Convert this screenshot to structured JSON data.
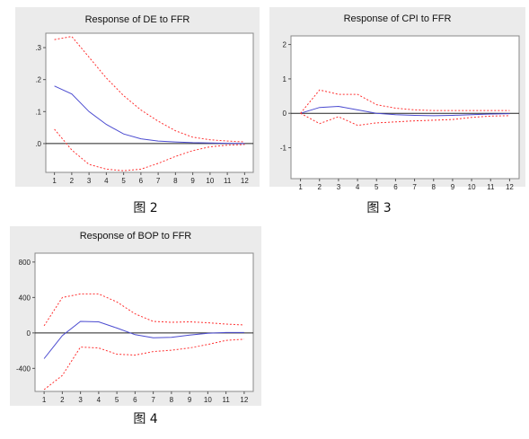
{
  "captions": [
    "图 2",
    "图 3",
    "图 4"
  ],
  "chart_data": [
    {
      "type": "line",
      "title": "Response of DE to FFR",
      "x": [
        1,
        2,
        3,
        4,
        5,
        6,
        7,
        8,
        9,
        10,
        11,
        12
      ],
      "yticks": [
        ".0",
        ".1",
        ".2",
        ".3"
      ],
      "ytick_values": [
        0,
        0.1,
        0.2,
        0.3
      ],
      "ylim": [
        -0.09,
        0.345
      ],
      "series": [
        {
          "role": "response",
          "color": "#4b4bd0",
          "values": [
            0.18,
            0.155,
            0.1,
            0.06,
            0.03,
            0.015,
            0.008,
            0.005,
            0.003,
            0.002,
            0.001,
            0.0
          ]
        },
        {
          "role": "upper-band",
          "color": "#ff3030",
          "values": [
            0.325,
            0.335,
            0.27,
            0.205,
            0.15,
            0.105,
            0.07,
            0.04,
            0.02,
            0.012,
            0.008,
            0.005
          ]
        },
        {
          "role": "lower-band",
          "color": "#ff3030",
          "values": [
            0.045,
            -0.02,
            -0.065,
            -0.08,
            -0.085,
            -0.08,
            -0.062,
            -0.04,
            -0.022,
            -0.01,
            -0.005,
            -0.003
          ]
        }
      ]
    },
    {
      "type": "line",
      "title": "Response of CPI to FFR",
      "x": [
        1,
        2,
        3,
        4,
        5,
        6,
        7,
        8,
        9,
        10,
        11,
        12
      ],
      "yticks": [
        "2",
        "1",
        "0",
        "-1"
      ],
      "ytick_values": [
        2,
        1,
        0,
        -1
      ],
      "ylim": [
        -1.9,
        2.25
      ],
      "series": [
        {
          "role": "response",
          "color": "#4b4bd0",
          "values": [
            0.0,
            0.17,
            0.2,
            0.1,
            0.0,
            -0.04,
            -0.06,
            -0.07,
            -0.06,
            -0.04,
            -0.02,
            -0.01
          ]
        },
        {
          "role": "upper-band",
          "color": "#ff3030",
          "values": [
            0.0,
            0.68,
            0.55,
            0.55,
            0.25,
            0.15,
            0.1,
            0.08,
            0.08,
            0.08,
            0.08,
            0.08
          ]
        },
        {
          "role": "lower-band",
          "color": "#ff3030",
          "values": [
            0.0,
            -0.3,
            -0.1,
            -0.35,
            -0.28,
            -0.25,
            -0.22,
            -0.2,
            -0.18,
            -0.12,
            -0.08,
            -0.07
          ]
        }
      ]
    },
    {
      "type": "line",
      "title": "Response of BOP to FFR",
      "x": [
        1,
        2,
        3,
        4,
        5,
        6,
        7,
        8,
        9,
        10,
        11,
        12
      ],
      "yticks": [
        "800",
        "400",
        "0",
        "-400"
      ],
      "ytick_values": [
        800,
        400,
        0,
        -400
      ],
      "ylim": [
        -660,
        900
      ],
      "series": [
        {
          "role": "response",
          "color": "#4b4bd0",
          "values": [
            -290,
            -30,
            130,
            125,
            55,
            -20,
            -55,
            -50,
            -25,
            -5,
            5,
            5
          ]
        },
        {
          "role": "upper-band",
          "color": "#ff3030",
          "values": [
            80,
            400,
            440,
            440,
            350,
            215,
            130,
            120,
            125,
            115,
            100,
            90
          ]
        },
        {
          "role": "lower-band",
          "color": "#ff3030",
          "values": [
            -640,
            -480,
            -160,
            -170,
            -240,
            -250,
            -210,
            -195,
            -170,
            -130,
            -85,
            -70
          ]
        }
      ]
    }
  ]
}
